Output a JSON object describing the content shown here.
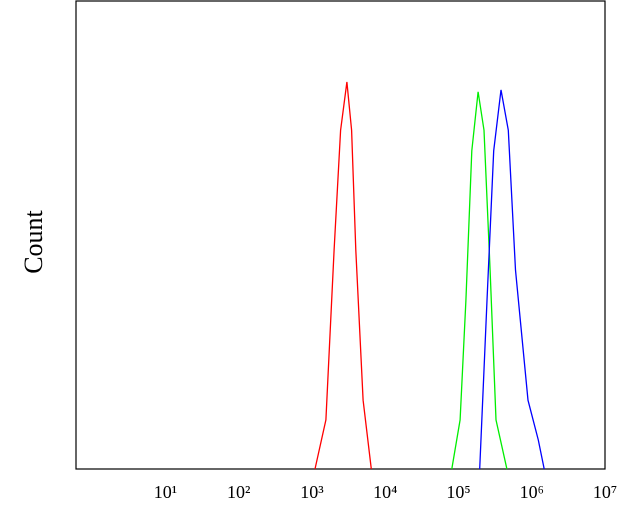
{
  "chart_data": {
    "type": "line",
    "y_label": "Count",
    "x_log": true,
    "xlim": [
      0.6,
      10000000
    ],
    "ylim": [
      0,
      100
    ],
    "xticks": [
      {
        "value": 10,
        "label": "10¹"
      },
      {
        "value": 100,
        "label": "10²"
      },
      {
        "value": 1000,
        "label": "10³"
      },
      {
        "value": 10000,
        "label": "10⁴"
      },
      {
        "value": 100000,
        "label": "10⁵"
      },
      {
        "value": 1000000,
        "label": "10⁶"
      },
      {
        "value": 10000000,
        "label": "10⁷"
      }
    ],
    "series": [
      {
        "color": "#ff0000",
        "x": [
          1100,
          1550,
          2000,
          2460,
          3000,
          3470,
          3960,
          4980,
          6440
        ],
        "values": [
          0,
          10.5,
          46.8,
          72.4,
          82.7,
          72.4,
          46.8,
          14.7,
          0
        ]
      },
      {
        "color": "#00ee00",
        "x": [
          81000,
          105000,
          126000,
          152000,
          185000,
          223000,
          270000,
          325000,
          458000
        ],
        "values": [
          0,
          10.5,
          36,
          68,
          80.6,
          72.4,
          42.5,
          10.5,
          0
        ]
      },
      {
        "color": "#0000ff",
        "x": [
          195000,
          245000,
          302000,
          380000,
          478000,
          600000,
          890000,
          1230000,
          1480000
        ],
        "values": [
          0,
          36,
          68,
          81,
          72.4,
          42.5,
          14.7,
          6.2,
          0
        ]
      }
    ]
  }
}
